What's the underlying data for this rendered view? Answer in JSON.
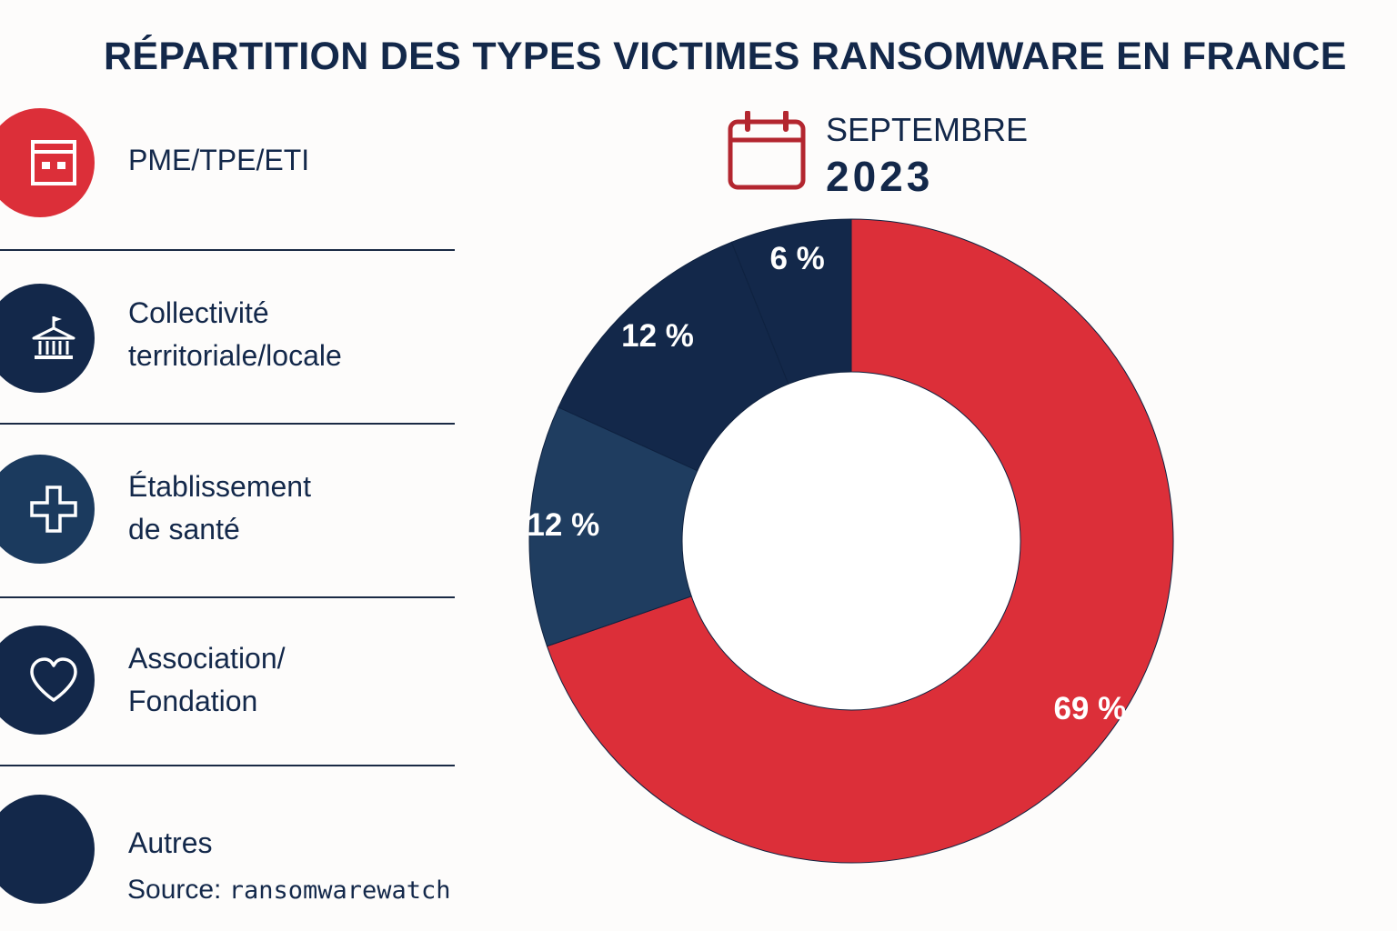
{
  "title": "RÉPARTITION DES TYPES VICTIMES RANSOMWARE EN FRANCE",
  "period": {
    "month": "SEPTEMBRE",
    "year": "2023",
    "icon": "calendar-icon"
  },
  "legend": [
    {
      "label": "PME/TPE/ETI",
      "icon": "building-icon",
      "color": "#dc2f39"
    },
    {
      "label": "Collectivité\nterritoriale/locale",
      "icon": "town-hall-icon",
      "color": "#13284a"
    },
    {
      "label": "Établissement\nde santé",
      "icon": "health-cross-icon",
      "color": "#1b3a5e"
    },
    {
      "label": "Association/\nFondation",
      "icon": "heart-icon",
      "color": "#13284a"
    },
    {
      "label": "Autres",
      "icon": "",
      "color": "#13284a"
    }
  ],
  "source": {
    "label": "Source:",
    "value": "ransomwarewatch"
  },
  "chart_data": {
    "type": "pie",
    "title": "RÉPARTITION DES TYPES VICTIMES RANSOMWARE EN FRANCE",
    "slices": [
      {
        "value": 69,
        "label": "69 %",
        "color": "#dc2f39"
      },
      {
        "value": 12,
        "label": "12 %",
        "color": "#1f3d60"
      },
      {
        "value": 12,
        "label": "12 %",
        "color": "#13284a"
      },
      {
        "value": 6,
        "label": "6 %",
        "color": "#13284a"
      }
    ],
    "unit": "%",
    "donut": true,
    "legend_position": "left"
  }
}
